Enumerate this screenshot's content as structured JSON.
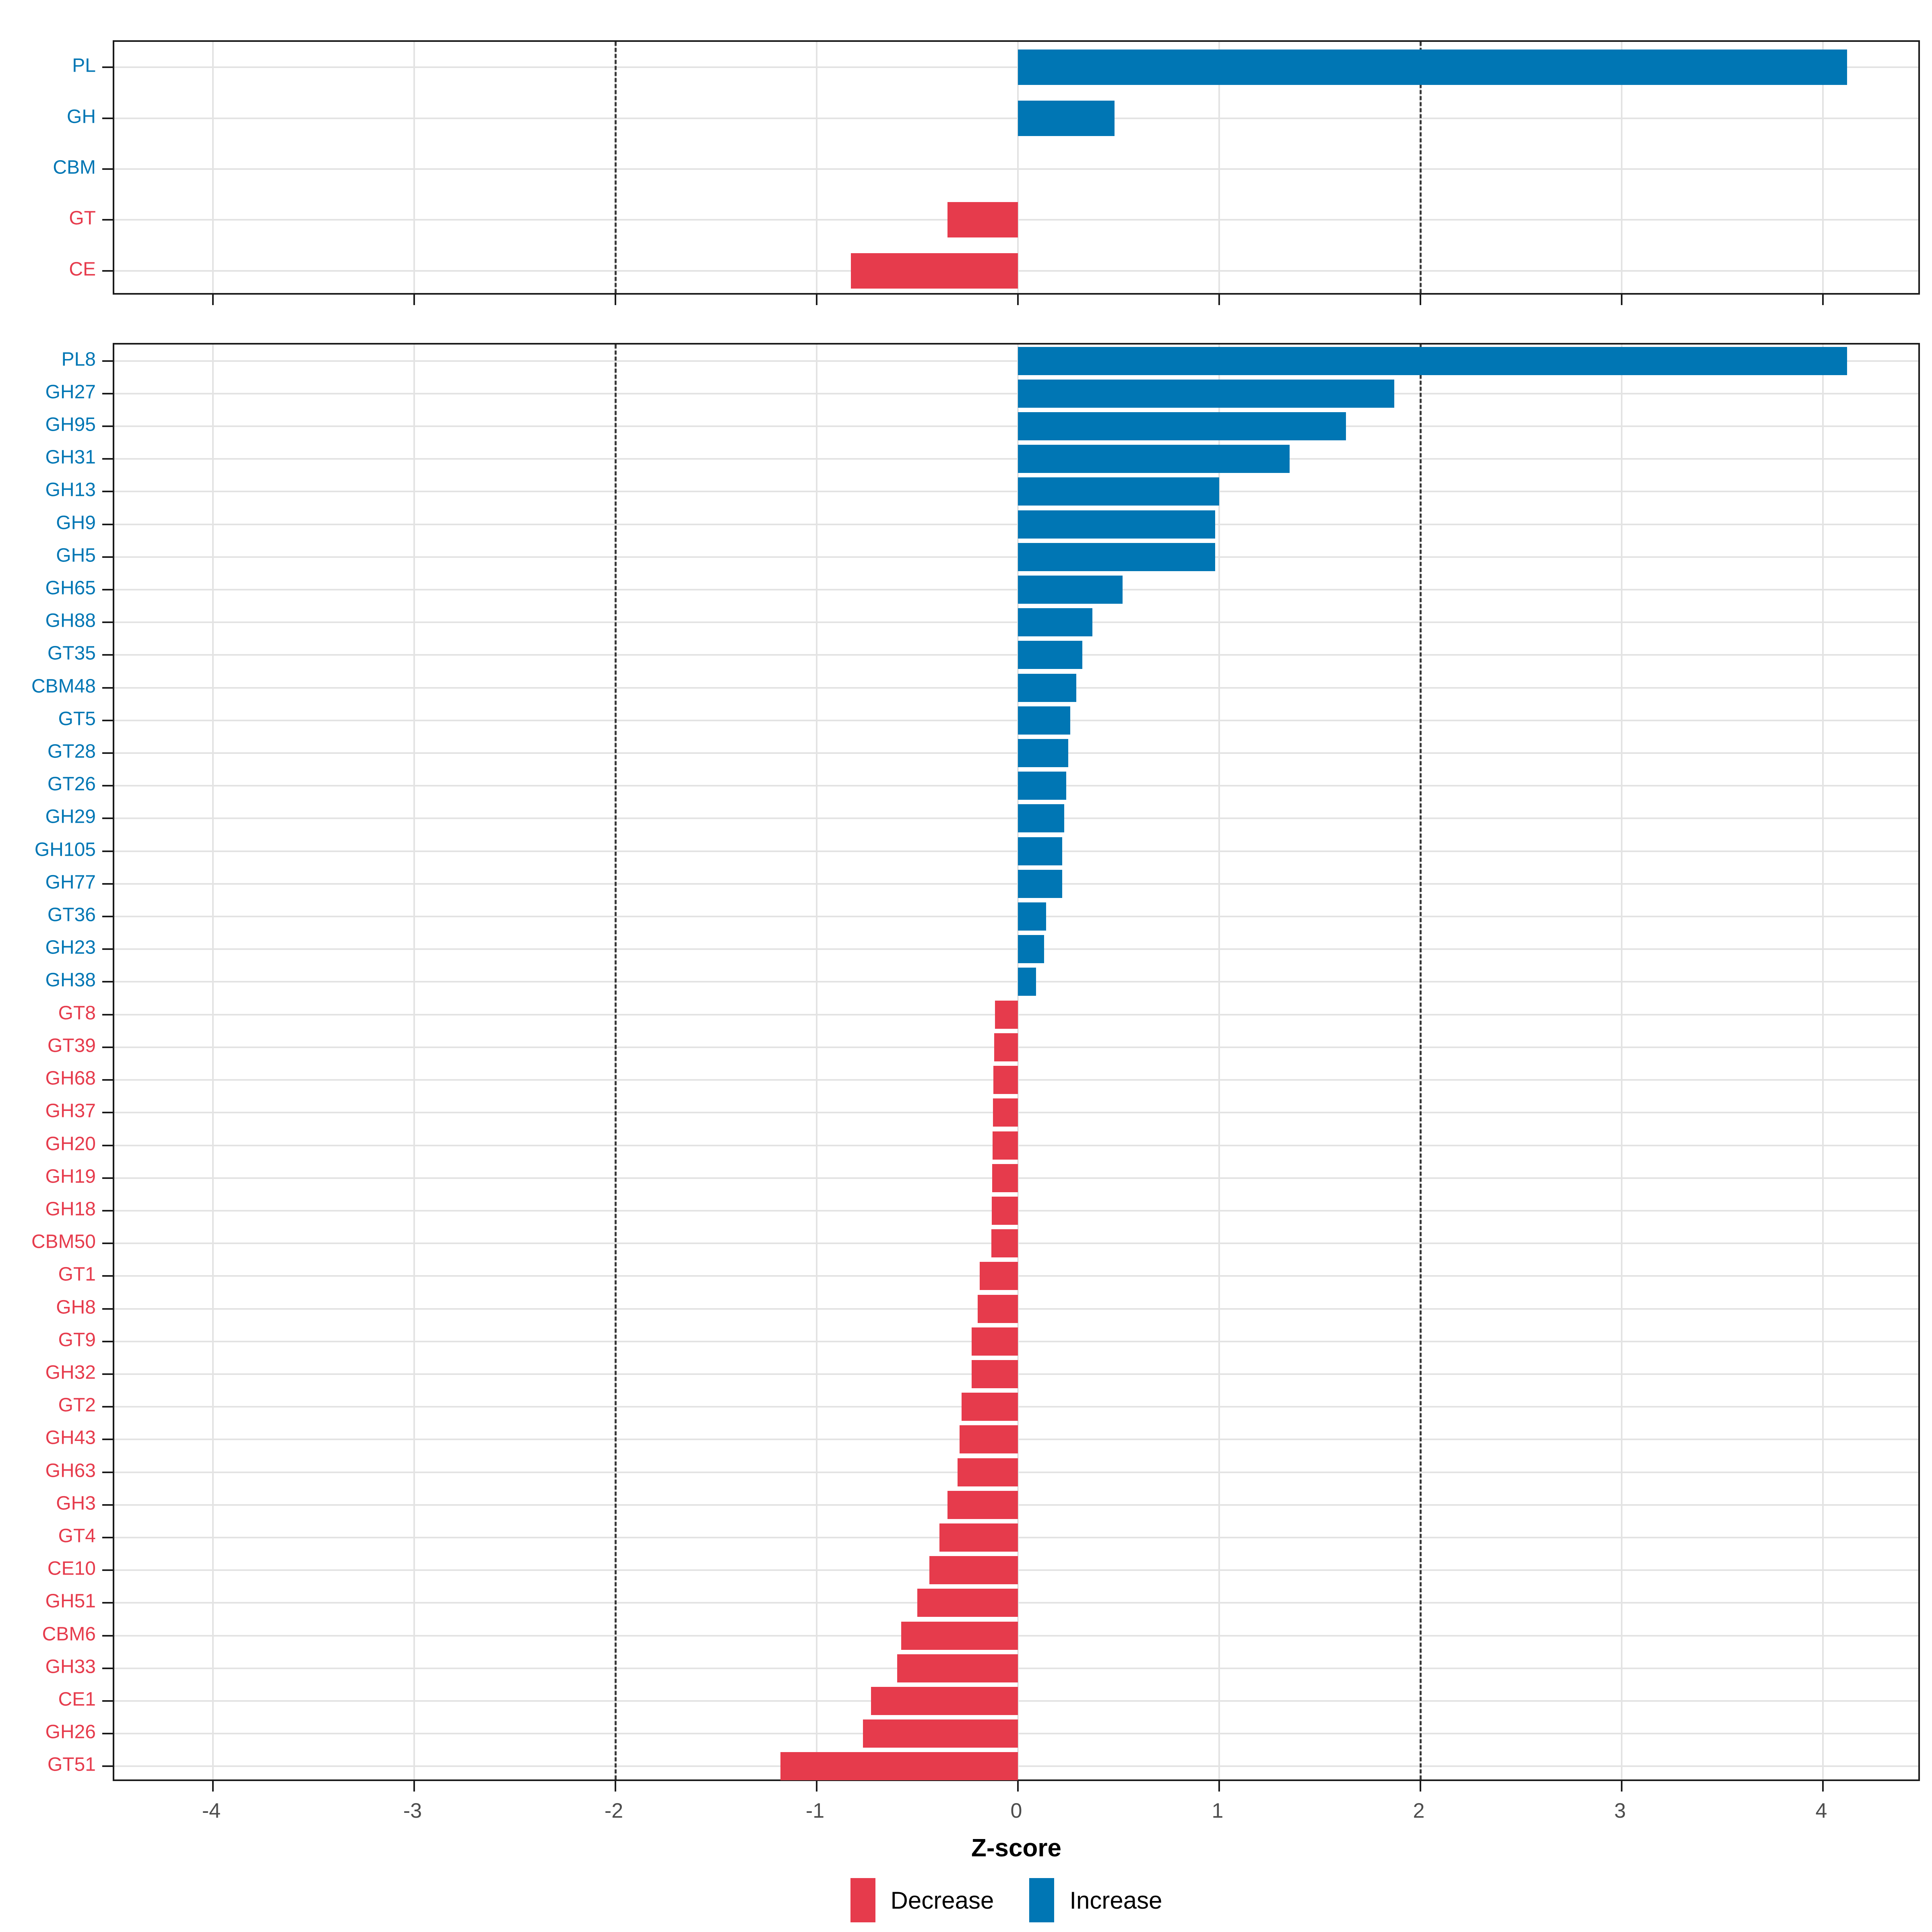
{
  "axis": {
    "title": "Z-score",
    "ticks": [
      -4,
      -3,
      -2,
      -1,
      0,
      1,
      2,
      3,
      4
    ],
    "xlim": [
      -4.49,
      4.49
    ],
    "reference_lines": [
      -2,
      2
    ]
  },
  "colors": {
    "increase": "#0076B4",
    "decrease": "#E63B4C",
    "grid": "#e3e3e3",
    "dashed": "#3a3a3a",
    "tick_text": "#4d4d4d"
  },
  "legend": {
    "items": [
      {
        "label": "Decrease",
        "color": "#E63B4C"
      },
      {
        "label": "Increase",
        "color": "#0076B4"
      }
    ]
  },
  "chart_data": [
    {
      "type": "bar",
      "orientation": "horizontal",
      "panel": "classes",
      "xlabel": "Z-score",
      "xlim": [
        -4.49,
        4.49
      ],
      "grid": true,
      "categories": [
        "PL",
        "GH",
        "CBM",
        "GT",
        "CE"
      ],
      "values": [
        4.12,
        0.48,
        0,
        -0.35,
        -0.83
      ]
    },
    {
      "type": "bar",
      "orientation": "horizontal",
      "panel": "families",
      "xlabel": "Z-score",
      "xlim": [
        -4.49,
        4.49
      ],
      "grid": true,
      "categories": [
        "PL8",
        "GH27",
        "GH95",
        "GH31",
        "GH13",
        "GH9",
        "GH5",
        "GH65",
        "GH88",
        "GT35",
        "CBM48",
        "GT5",
        "GT28",
        "GT26",
        "GH29",
        "GH105",
        "GH77",
        "GT36",
        "GH23",
        "GH38",
        "GT8",
        "GT39",
        "GH68",
        "GH37",
        "GH20",
        "GH19",
        "GH18",
        "CBM50",
        "GT1",
        "GH8",
        "GT9",
        "GH32",
        "GT2",
        "GH43",
        "GH63",
        "GH3",
        "GT4",
        "CE10",
        "GH51",
        "CBM6",
        "GH33",
        "CE1",
        "GH26",
        "GT51"
      ],
      "values": [
        4.12,
        1.87,
        1.63,
        1.35,
        1.0,
        0.98,
        0.98,
        0.52,
        0.37,
        0.32,
        0.29,
        0.26,
        0.25,
        0.24,
        0.23,
        0.22,
        0.22,
        0.14,
        0.13,
        0.09,
        -0.115,
        -0.118,
        -0.122,
        -0.125,
        -0.127,
        -0.129,
        -0.131,
        -0.133,
        -0.19,
        -0.2,
        -0.23,
        -0.23,
        -0.28,
        -0.29,
        -0.3,
        -0.35,
        -0.39,
        -0.44,
        -0.5,
        -0.58,
        -0.6,
        -0.73,
        -0.77,
        -1.18
      ]
    }
  ]
}
